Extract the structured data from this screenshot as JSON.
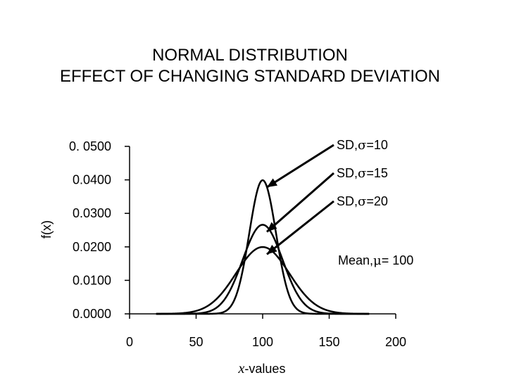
{
  "chart_data": {
    "type": "line",
    "title_lines": [
      "NORMAL DISTRIBUTION",
      "EFFECT OF CHANGING STANDARD DEVIATION"
    ],
    "xlabel_italic": "x",
    "xlabel_rest": "-values",
    "ylabel": "f(x)",
    "xlim": [
      0,
      200
    ],
    "ylim": [
      0,
      0.05
    ],
    "x_ticks": [
      0,
      50,
      100,
      150,
      200
    ],
    "y_ticks": [
      0.0,
      0.01,
      0.02,
      0.03,
      0.04,
      0.05
    ],
    "y_tick_labels": [
      "0.0000",
      "0.0100",
      "0.0200",
      "0.0300",
      "0.0400",
      "0. 0500"
    ],
    "x_range": [
      20,
      180
    ],
    "mean": 100,
    "series": [
      {
        "sigma": 10,
        "peak": 0.0399
      },
      {
        "sigma": 15,
        "peak": 0.0266
      },
      {
        "sigma": 20,
        "peak": 0.0199
      }
    ],
    "annotations": [
      {
        "pre": "SD,",
        "sym": "σ",
        "post": "=10"
      },
      {
        "pre": "SD,",
        "sym": "σ",
        "post": "=15"
      },
      {
        "pre": "SD,",
        "sym": "σ",
        "post": "=20"
      },
      {
        "pre": "Mean,",
        "sym": "μ",
        "post": "= 100"
      }
    ],
    "grid": false,
    "line_color": "#000000"
  }
}
